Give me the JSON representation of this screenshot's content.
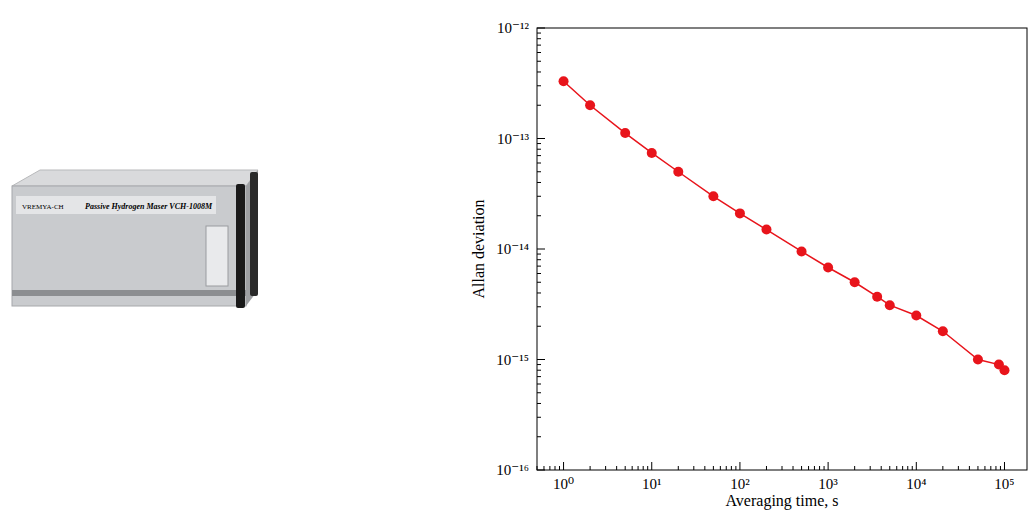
{
  "device": {
    "brand": "VREMYA-CH",
    "model": "Passive Hydrogen Maser VCH-1008M"
  },
  "chart_data": {
    "type": "line",
    "log": true,
    "grid": false,
    "marker": "circle",
    "line_style": "solid",
    "color": "#e8141b",
    "xlabel": "Averaging time, s",
    "ylabel": "Allan deviation",
    "x": [
      1,
      2,
      5,
      10,
      20,
      50,
      100,
      200,
      500,
      1000,
      2000,
      3600,
      5000,
      10000,
      20000,
      50000,
      86400,
      100000
    ],
    "values": [
      3.3e-13,
      2e-13,
      1.12e-13,
      7.4e-14,
      5e-14,
      3e-14,
      2.1e-14,
      1.5e-14,
      9.5e-15,
      6.8e-15,
      5e-15,
      3.7e-15,
      3.1e-15,
      2.5e-15,
      1.8e-15,
      1e-15,
      9e-16,
      8e-16
    ],
    "xlim": [
      0.5,
      180000
    ],
    "ylim": [
      1e-16,
      1e-12
    ],
    "xticks": [
      {
        "value": 1,
        "label": "10⁰"
      },
      {
        "value": 10,
        "label": "10¹"
      },
      {
        "value": 100,
        "label": "10²"
      },
      {
        "value": 1000,
        "label": "10³"
      },
      {
        "value": 10000,
        "label": "10⁴"
      },
      {
        "value": 100000,
        "label": "10⁵"
      }
    ],
    "yticks": [
      {
        "value": 1e-16,
        "label": "10⁻¹⁶"
      },
      {
        "value": 1e-15,
        "label": "10⁻¹⁵"
      },
      {
        "value": 1e-14,
        "label": "10⁻¹⁴"
      },
      {
        "value": 1e-13,
        "label": "10⁻¹³"
      },
      {
        "value": 1e-12,
        "label": "10⁻¹²"
      }
    ]
  }
}
